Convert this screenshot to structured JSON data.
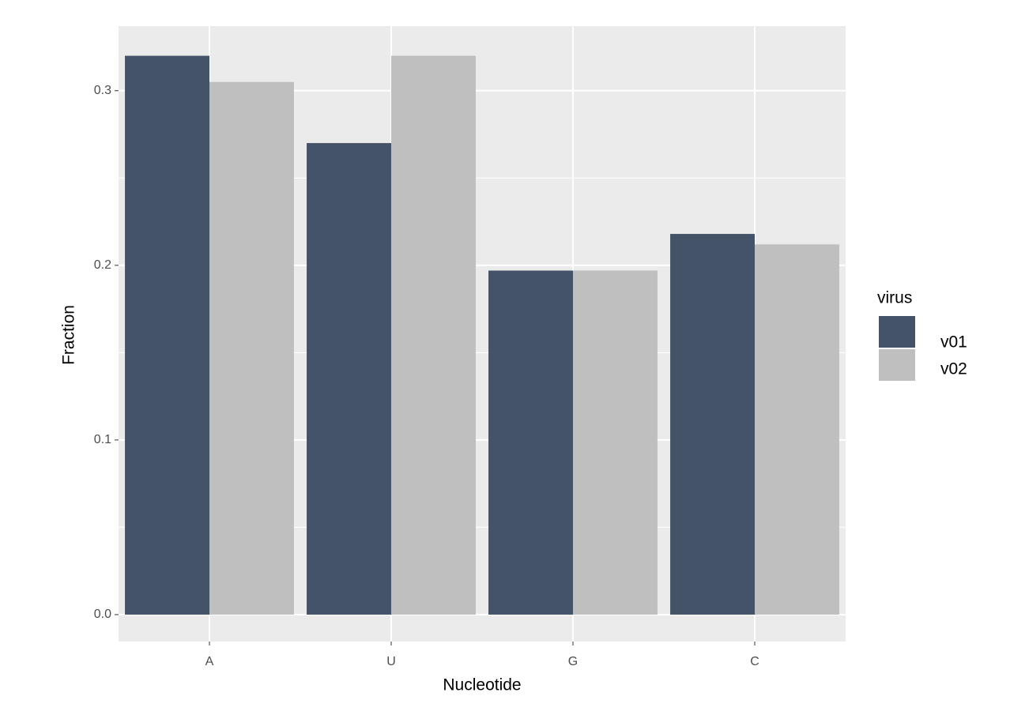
{
  "chart_data": {
    "type": "bar",
    "x_label": "Nucleotide",
    "y_label": "Fraction",
    "categories": [
      "A",
      "U",
      "G",
      "C"
    ],
    "series": [
      {
        "name": "v01",
        "color": "#455368",
        "values": [
          0.32,
          0.27,
          0.197,
          0.218
        ]
      },
      {
        "name": "v02",
        "color": "#bfbfbf",
        "values": [
          0.305,
          0.32,
          0.197,
          0.212
        ]
      }
    ],
    "legend_title": "virus",
    "legend_position": "right",
    "ylim": [
      -0.0154,
      0.337
    ],
    "yticks": [
      {
        "value": 0,
        "label": "0.0"
      },
      0.1,
      0.2,
      0.3
    ],
    "grid": true
  }
}
